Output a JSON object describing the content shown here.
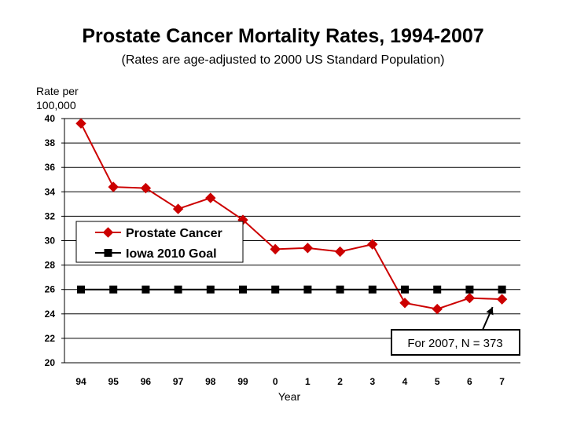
{
  "chart_data": {
    "type": "line",
    "title": "Prostate Cancer Mortality Rates, 1994-2007",
    "subtitle": "(Rates are age-adjusted to 2000 US Standard Population)",
    "ylabel": "Rate per\n100,000",
    "xlabel": "Year",
    "categories": [
      "94",
      "95",
      "96",
      "97",
      "98",
      "99",
      "0",
      "1",
      "2",
      "3",
      "4",
      "5",
      "6",
      "7"
    ],
    "ylim": [
      20,
      40
    ],
    "yticks": [
      20,
      22,
      24,
      26,
      28,
      30,
      32,
      34,
      36,
      38,
      40
    ],
    "grid": true,
    "legend_position": "left-middle",
    "series": [
      {
        "name": "Prostate Cancer",
        "color": "#cc0000",
        "marker": "diamond",
        "values": [
          39.6,
          34.4,
          34.3,
          32.6,
          33.5,
          31.7,
          29.3,
          29.4,
          29.1,
          29.7,
          24.9,
          24.4,
          25.3,
          25.2
        ]
      },
      {
        "name": "Iowa 2010 Goal",
        "color": "#000000",
        "marker": "square",
        "values": [
          26,
          26,
          26,
          26,
          26,
          26,
          26,
          26,
          26,
          26,
          26,
          26,
          26,
          26
        ]
      }
    ],
    "annotation": {
      "text": "For 2007, N = 373",
      "points_to_category": "7",
      "points_to_series": "Prostate Cancer"
    }
  }
}
